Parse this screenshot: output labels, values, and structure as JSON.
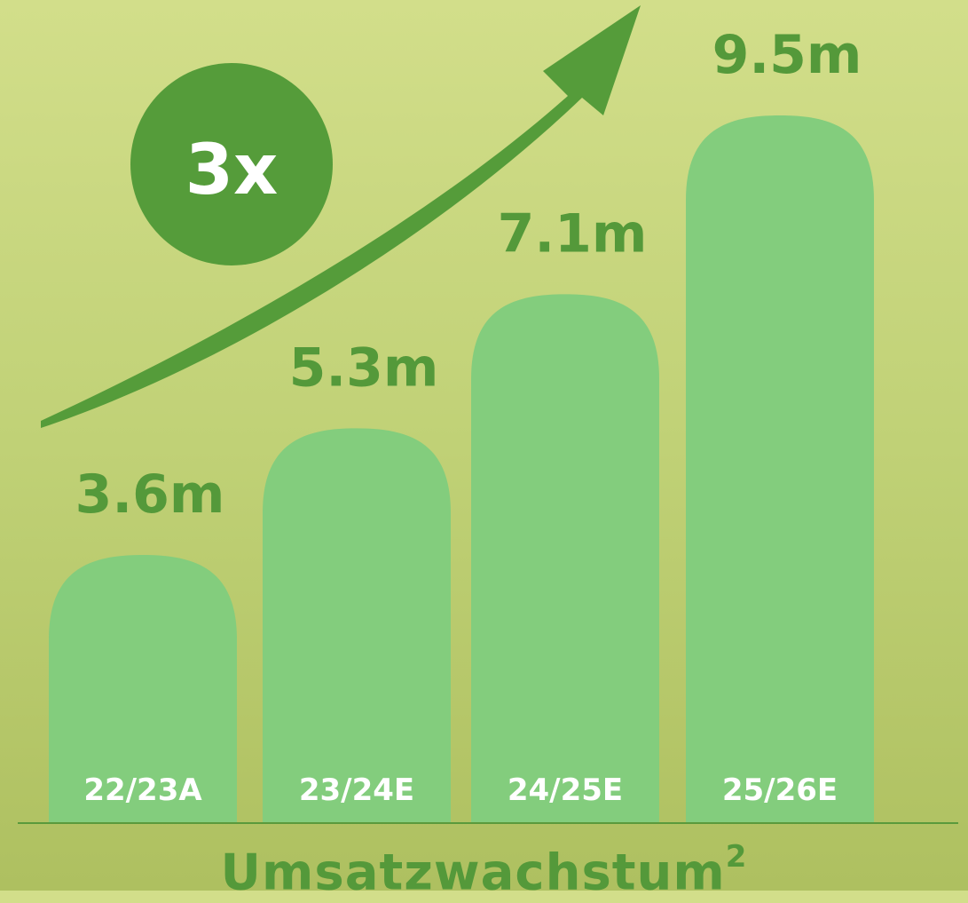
{
  "chart_data": {
    "type": "bar",
    "title": "Umsatzwachstum",
    "title_footnote": "2",
    "categories": [
      "22/23A",
      "23/24E",
      "24/25E",
      "25/26E"
    ],
    "values": [
      3.6,
      5.3,
      7.1,
      9.5
    ],
    "value_labels": [
      "3.6m",
      "5.3m",
      "7.1m",
      "9.5m"
    ],
    "ylim": [
      0,
      9.5
    ],
    "grid": false,
    "legend": "none",
    "annotations": [
      {
        "text": "3x"
      }
    ],
    "colors": {
      "bar": "#83cd7d",
      "value_text": "#54993a",
      "badge": "#559c3a",
      "arrow": "#559c3a",
      "baseline": "#5a9a3c",
      "category_text": "#ffffff"
    }
  }
}
